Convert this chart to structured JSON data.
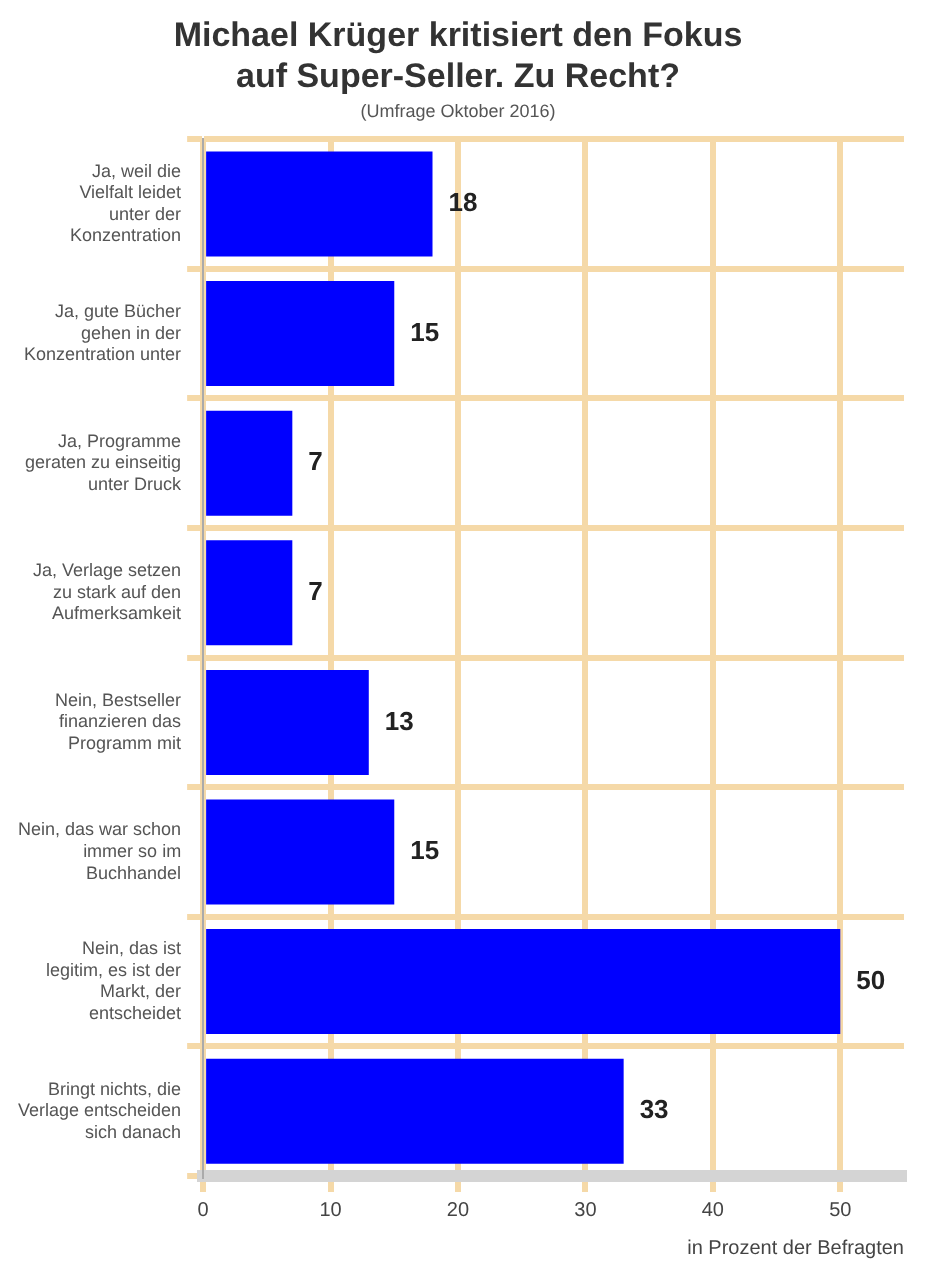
{
  "chart_data": {
    "type": "bar",
    "orientation": "horizontal",
    "title": "Michael Krüger kritisiert den Fokus auf Super-Seller. Zu Recht?",
    "subtitle": "(Umfrage Oktober 2016)",
    "xlabel": "in Prozent der Befragten",
    "categories": [
      "Ja, weil die Vielfalt leidet unter der Konzentration",
      "Ja, gute Bücher gehen in der Konzentration unter",
      "Ja, Programme geraten zu einseitig unter Druck",
      "Ja, Verlage setzen zu stark auf den Aufmerksamkeit",
      "Nein, Bestseller finanzieren das Programm mit",
      "Nein, das war schon immer so im Buchhandel",
      "Nein, das ist legitim, es ist der Markt, der entscheidet",
      "Bringt nichts, die Verlage entscheiden sich danach"
    ],
    "values": [
      18,
      15,
      7,
      7,
      13,
      15,
      50,
      33
    ],
    "color": "#0000ff",
    "data_labels": true,
    "xlim": [
      0,
      55
    ],
    "xticks": [
      0,
      10,
      20,
      30,
      40,
      50
    ],
    "grid": true,
    "legend": false
  }
}
